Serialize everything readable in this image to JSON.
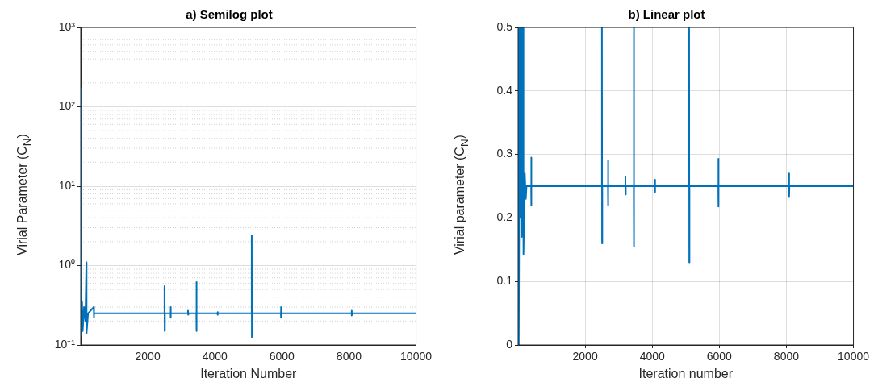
{
  "chart_data": [
    {
      "type": "line",
      "title": "a) Semilog plot",
      "xlabel": "Iteration Number",
      "ylabel": "Virial Parameter (C$_{N}$)",
      "log": "y",
      "grid": true,
      "marker": "none",
      "line_style": "solid",
      "xlim": [
        0,
        10000
      ],
      "xticks": [
        2000,
        4000,
        6000,
        8000,
        10000
      ],
      "ylim": [
        0.1,
        1000
      ],
      "yticks": [
        {
          "value": 0.1,
          "label": "10⁻¹"
        },
        {
          "value": 1,
          "label": "10⁰"
        },
        {
          "value": 10,
          "label": "10¹"
        },
        {
          "value": 100,
          "label": "10²"
        },
        {
          "value": 1000,
          "label": "10³"
        }
      ],
      "series": [
        {
          "color": "#0072bd",
          "x": [
            1,
            20,
            40,
            60,
            100,
            140,
            170,
            175,
            220,
            390,
            395,
            400,
            2500,
            2500,
            2505,
            2510,
            2680,
            2680,
            2685,
            2690,
            3200,
            3200,
            3205,
            3210,
            3450,
            3450,
            3455,
            3460,
            4080,
            4080,
            4085,
            4090,
            5100,
            5100,
            5105,
            5110,
            5970,
            5970,
            5975,
            5980,
            8080,
            8080,
            8085,
            8090,
            10000
          ],
          "values": [
            170,
            0.13,
            0.35,
            0.15,
            0.3,
            0.2,
            1.1,
            0.14,
            0.25,
            0.3,
            0.22,
            0.25,
            0.25,
            0.55,
            0.15,
            0.25,
            0.25,
            0.3,
            0.22,
            0.25,
            0.25,
            0.27,
            0.24,
            0.25,
            0.25,
            0.62,
            0.15,
            0.25,
            0.25,
            0.26,
            0.24,
            0.25,
            0.25,
            2.4,
            0.125,
            0.25,
            0.25,
            0.3,
            0.22,
            0.25,
            0.25,
            0.27,
            0.235,
            0.25,
            0.25
          ]
        }
      ]
    },
    {
      "type": "line",
      "title": "b) Linear plot",
      "xlabel": "Iteration number",
      "ylabel": "Virial parameter (C$_{N}$)",
      "grid": true,
      "marker": "none",
      "line_style": "solid",
      "xlim": [
        0,
        10000
      ],
      "xticks": [
        2000,
        4000,
        6000,
        8000,
        10000
      ],
      "ylim": [
        0,
        0.5
      ],
      "yticks": [
        0,
        0.1,
        0.2,
        0.3,
        0.4,
        0.5
      ],
      "series": [
        {
          "color": "#0072bd",
          "x": [
            1,
            20,
            50,
            80,
            100,
            110,
            130,
            150,
            160,
            200,
            230,
            250,
            390,
            390,
            395,
            400,
            2500,
            2500,
            2505,
            2510,
            2680,
            2680,
            2685,
            2690,
            3200,
            3200,
            3205,
            3210,
            3450,
            3450,
            3455,
            3460,
            4080,
            4080,
            4085,
            4090,
            5100,
            5100,
            5105,
            5110,
            5970,
            5970,
            5975,
            5980,
            8080,
            8080,
            8085,
            8090,
            10000
          ],
          "values": [
            0.5,
            0,
            0.5,
            0.2,
            0.5,
            0.17,
            0.33,
            0.5,
            0.143,
            0.27,
            0.23,
            0.25,
            0.25,
            0.295,
            0.22,
            0.25,
            0.25,
            0.5,
            0.16,
            0.25,
            0.25,
            0.29,
            0.22,
            0.25,
            0.25,
            0.265,
            0.237,
            0.25,
            0.25,
            0.5,
            0.155,
            0.25,
            0.25,
            0.26,
            0.24,
            0.25,
            0.25,
            0.5,
            0.13,
            0.25,
            0.25,
            0.293,
            0.218,
            0.25,
            0.25,
            0.27,
            0.233,
            0.25,
            0.25
          ]
        }
      ]
    }
  ]
}
